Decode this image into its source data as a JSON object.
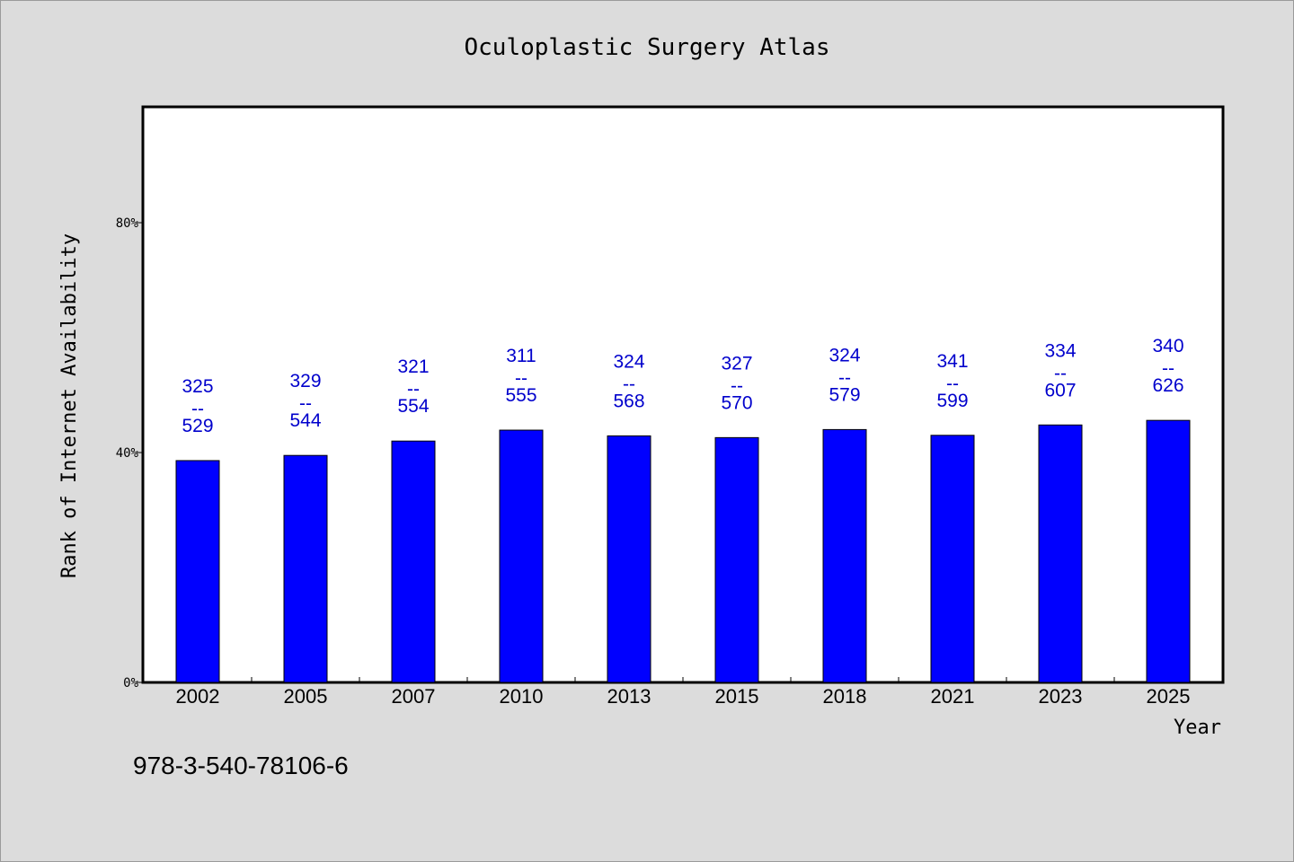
{
  "chart_data": {
    "type": "bar",
    "title": "Oculoplastic Surgery Atlas",
    "xlabel": "Year",
    "ylabel": "Rank of Internet Availability",
    "categories": [
      "2002",
      "2005",
      "2007",
      "2010",
      "2013",
      "2015",
      "2018",
      "2021",
      "2023",
      "2025"
    ],
    "values": [
      38.6,
      39.5,
      42.0,
      43.9,
      42.9,
      42.6,
      44.0,
      43.0,
      44.8,
      45.6
    ],
    "value_unit": "percent",
    "labels_top": [
      "325",
      "329",
      "321",
      "311",
      "324",
      "327",
      "324",
      "341",
      "334",
      "340"
    ],
    "labels_separator": "--",
    "labels_bottom": [
      "529",
      "544",
      "554",
      "555",
      "568",
      "570",
      "579",
      "599",
      "607",
      "626"
    ],
    "yticks": [
      {
        "value": 0,
        "label": "0%"
      },
      {
        "value": 40,
        "label": "40%"
      },
      {
        "value": 80,
        "label": "80%"
      }
    ],
    "ylim": [
      0,
      100
    ],
    "grid": false,
    "legend": "none",
    "bar_color": "#0000ff",
    "label_color": "#0000cc",
    "footnote": "978-3-540-78106-6"
  }
}
